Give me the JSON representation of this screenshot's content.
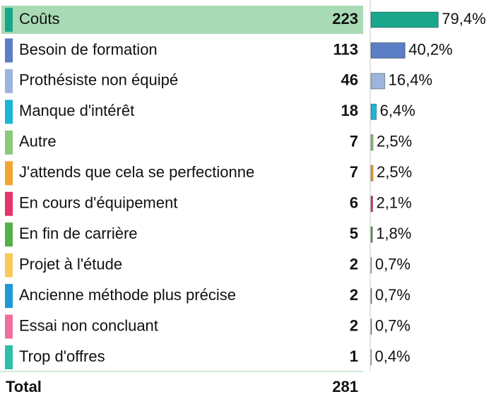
{
  "chart_data": {
    "type": "bar",
    "orientation": "horizontal",
    "categories": [
      "Coûts",
      "Besoin de formation",
      "Prothésiste non équipé",
      "Manque d'intérêt",
      "Autre",
      "J'attends que cela se perfectionne",
      "En cours d'équipement",
      "En fin de carrière",
      "Projet à l'étude",
      "Ancienne méthode plus précise",
      "Essai non concluant",
      "Trop d'offres"
    ],
    "counts": [
      223,
      113,
      46,
      18,
      7,
      7,
      6,
      5,
      2,
      2,
      2,
      1
    ],
    "values": [
      79.4,
      40.2,
      16.4,
      6.4,
      2.5,
      2.5,
      2.1,
      1.8,
      0.7,
      0.7,
      0.7,
      0.4
    ],
    "value_labels": [
      "79,4%",
      "40,2%",
      "16,4%",
      "6,4%",
      "2,5%",
      "2,5%",
      "2,1%",
      "1,8%",
      "0,7%",
      "0,7%",
      "0,7%",
      "0,4%"
    ],
    "colors": [
      "#1aa68a",
      "#5b7ec4",
      "#9db4dc",
      "#1ab6d6",
      "#8cc97a",
      "#f2a531",
      "#e8336b",
      "#55b04a",
      "#f9c95c",
      "#1a9ad6",
      "#ee6fa0",
      "#2cbfa9"
    ],
    "highlight_color": "#a8dab5",
    "total_label": "Total",
    "total": 281
  }
}
